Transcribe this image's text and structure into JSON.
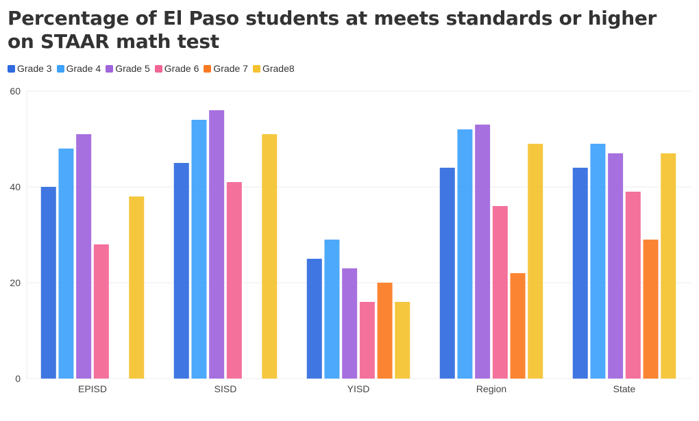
{
  "title": "Percentage of El Paso students at meets standards or higher on STAAR math test",
  "chart_data": {
    "type": "bar",
    "title": "Percentage of El Paso students at meets standards or higher on STAAR math test",
    "categories": [
      "EPISD",
      "SISD",
      "YISD",
      "Region",
      "State"
    ],
    "series": [
      {
        "name": "Grade 3",
        "color": "#2f6ae0",
        "values": [
          40,
          45,
          25,
          44,
          44
        ]
      },
      {
        "name": "Grade 4",
        "color": "#3ea2fb",
        "values": [
          48,
          54,
          29,
          52,
          49
        ]
      },
      {
        "name": "Grade 5",
        "color": "#a064dc",
        "values": [
          51,
          56,
          23,
          53,
          47
        ]
      },
      {
        "name": "Grade 6",
        "color": "#f36594",
        "values": [
          28,
          41,
          16,
          36,
          39
        ]
      },
      {
        "name": "Grade 7",
        "color": "#fb7a21",
        "values": [
          null,
          null,
          20,
          22,
          29
        ]
      },
      {
        "name": "Grade8",
        "color": "#f4c22f",
        "values": [
          38,
          51,
          16,
          49,
          47
        ]
      }
    ],
    "ylim": [
      0,
      60
    ],
    "yticks": [
      "0",
      "20",
      "40",
      "60"
    ],
    "xlabel": "",
    "ylabel": "",
    "grid": true,
    "legend_position": "top-left"
  }
}
